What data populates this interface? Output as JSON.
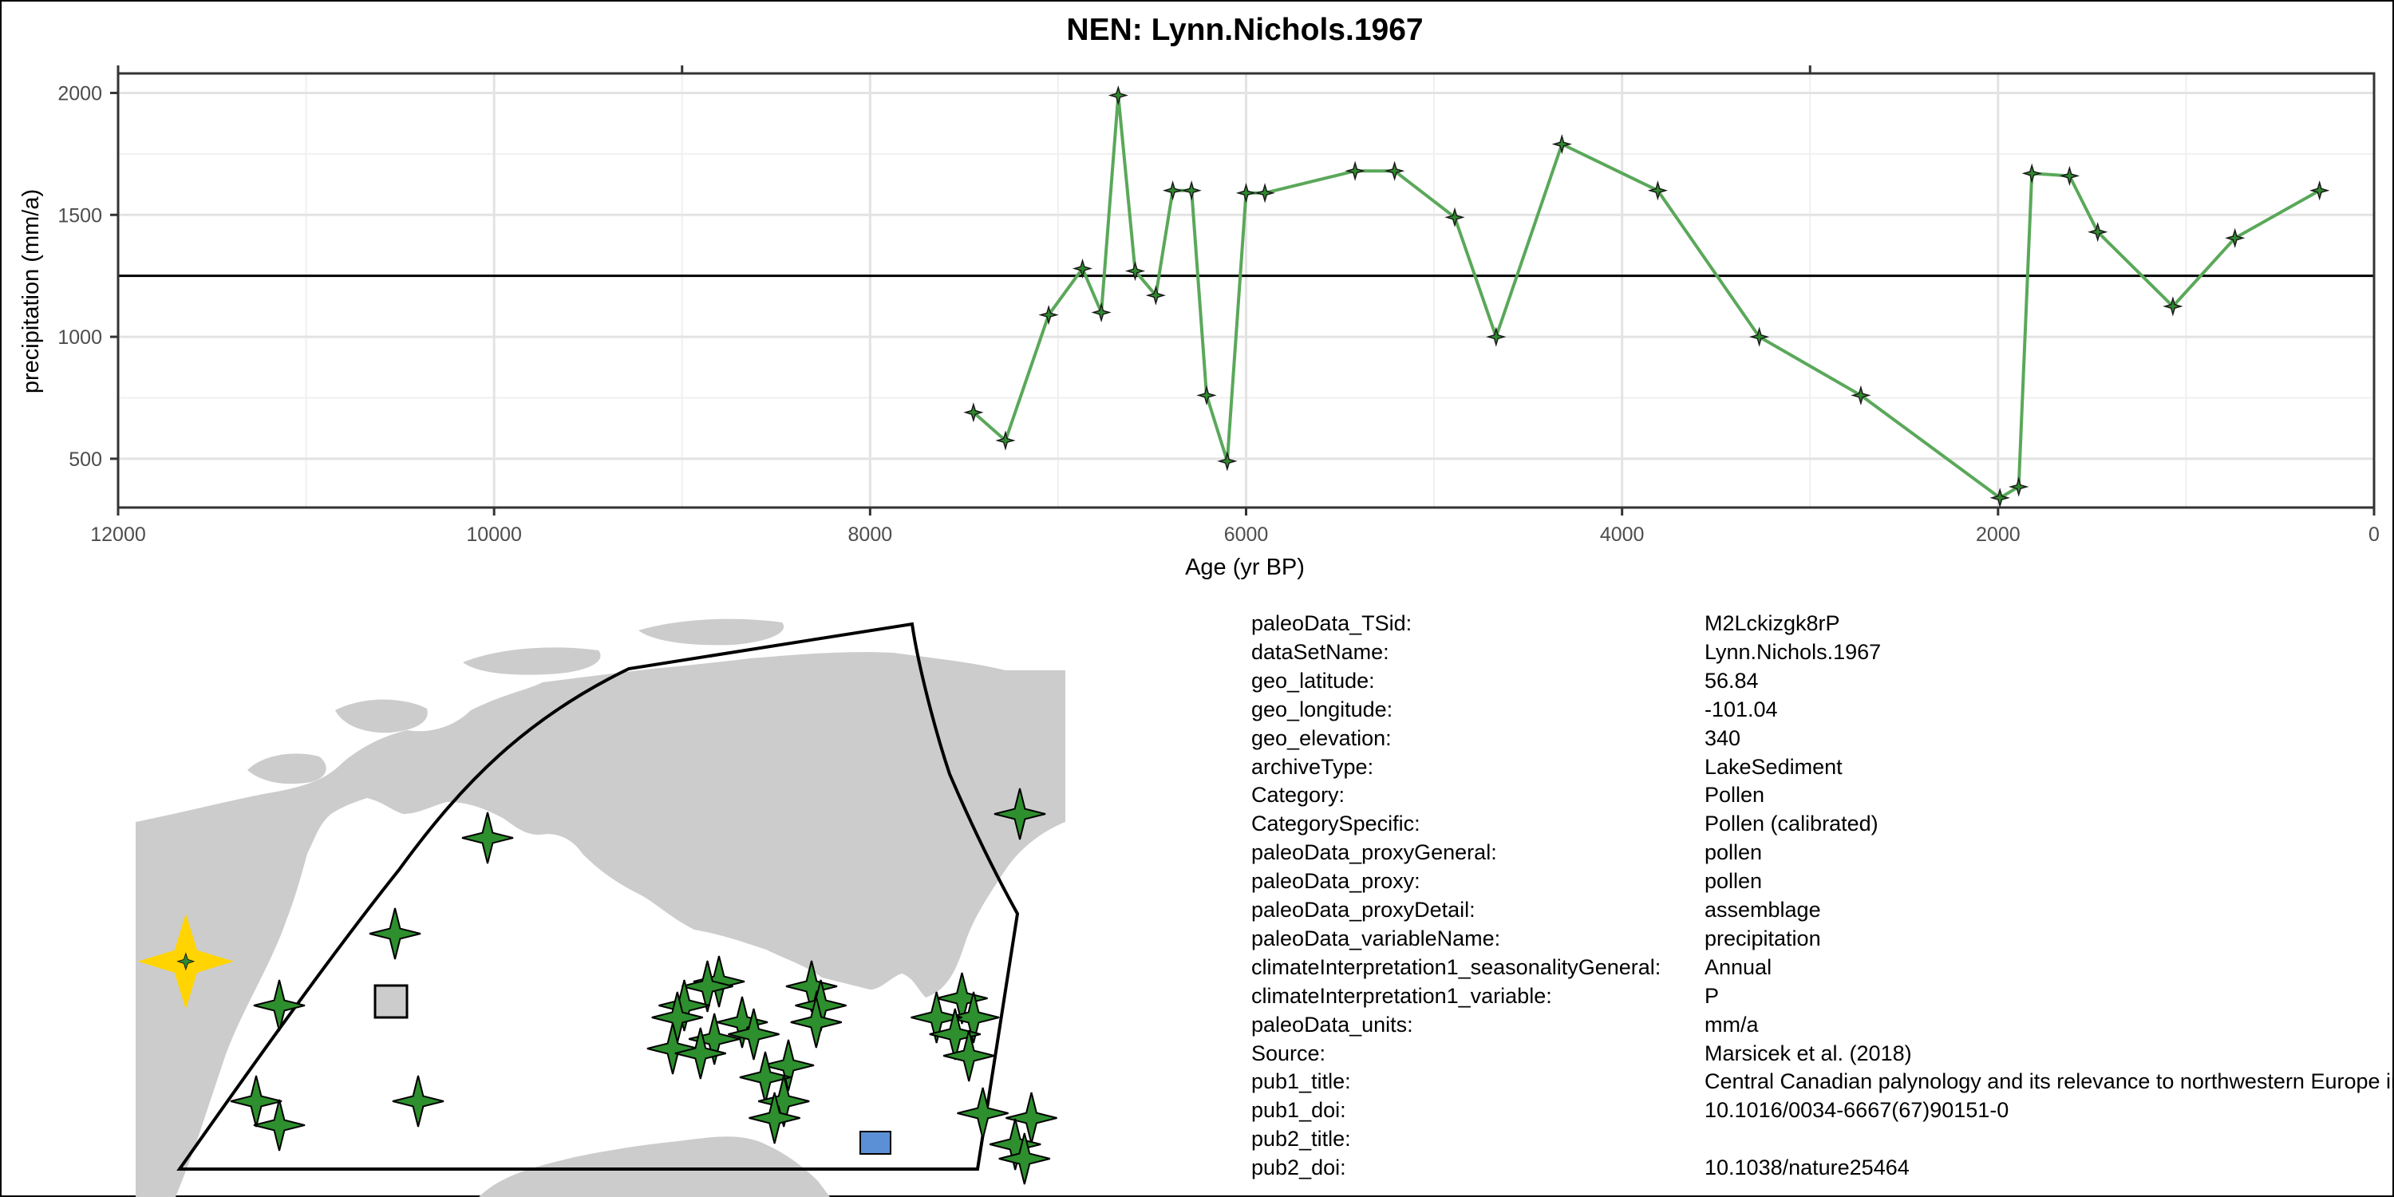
{
  "chart_data": {
    "type": "line",
    "title": "NEN: Lynn.Nichols.1967",
    "xlabel": "Age (yr BP)",
    "ylabel": "precipitation (mm/a)",
    "xlim": [
      12000,
      0
    ],
    "ylim": [
      300,
      2080
    ],
    "x_reversed": true,
    "x_ticks": [
      12000,
      10000,
      8000,
      6000,
      4000,
      2000,
      0
    ],
    "x_tick_labels": [
      "12000",
      "10000",
      "8000",
      "6000",
      "4000",
      "2000",
      "0"
    ],
    "y_ticks": [
      500,
      1000,
      1500,
      2000
    ],
    "y_tick_labels": [
      "500",
      "1000",
      "1500",
      "2000"
    ],
    "grid": true,
    "reference_line": 1250,
    "series": [
      {
        "color": "#5aa85a",
        "marker": "four-point-star",
        "x": [
          7450,
          7280,
          7050,
          6870,
          6770,
          6680,
          6590,
          6480,
          6390,
          6290,
          6210,
          6100,
          6000,
          5900,
          5420,
          5210,
          4890,
          4670,
          4320,
          3810,
          3270,
          2730,
          1990,
          1890,
          1820,
          1620,
          1470,
          1070,
          740,
          290
        ],
        "y": [
          690,
          575,
          1090,
          1280,
          1100,
          1990,
          1270,
          1170,
          1600,
          1600,
          760,
          490,
          1590,
          1590,
          1680,
          1680,
          1490,
          1000,
          1790,
          1600,
          1000,
          760,
          340,
          385,
          1670,
          1660,
          1430,
          1125,
          1405,
          1600
        ]
      }
    ]
  },
  "map": {
    "sites": [
      {
        "lon": -70,
        "lat": 72.6,
        "highlight": false
      },
      {
        "lon": -65,
        "lat": 63,
        "highlight": false
      },
      {
        "lon": -88,
        "lat": 62,
        "highlight": false
      },
      {
        "lon": -92,
        "lat": 58,
        "highlight": false
      },
      {
        "lon": -97,
        "lat": 55,
        "highlight": false
      },
      {
        "lon": -98,
        "lat": 51,
        "highlight": false
      },
      {
        "lon": -97,
        "lat": 50,
        "highlight": false
      },
      {
        "lon": -91,
        "lat": 51,
        "highlight": false
      },
      {
        "lon": -78,
        "lat": 56,
        "highlight": false
      },
      {
        "lon": -78.5,
        "lat": 55.8,
        "highlight": false
      },
      {
        "lon": -79.5,
        "lat": 55,
        "highlight": false
      },
      {
        "lon": -77,
        "lat": 54.3,
        "highlight": false
      },
      {
        "lon": -79.8,
        "lat": 54.5,
        "highlight": false
      },
      {
        "lon": -78.2,
        "lat": 53.6,
        "highlight": false
      },
      {
        "lon": -80,
        "lat": 53.2,
        "highlight": false
      },
      {
        "lon": -78.8,
        "lat": 53,
        "highlight": false
      },
      {
        "lon": -74,
        "lat": 55.8,
        "highlight": false
      },
      {
        "lon": -73.6,
        "lat": 55,
        "highlight": false
      },
      {
        "lon": -73.8,
        "lat": 54.3,
        "highlight": false
      },
      {
        "lon": -76.5,
        "lat": 53.8,
        "highlight": false
      },
      {
        "lon": -75,
        "lat": 52.5,
        "highlight": false
      },
      {
        "lon": -67.5,
        "lat": 55.3,
        "highlight": false
      },
      {
        "lon": -67,
        "lat": 54.5,
        "highlight": false
      },
      {
        "lon": -68.6,
        "lat": 54.5,
        "highlight": false
      },
      {
        "lon": -67.8,
        "lat": 53.8,
        "highlight": false
      },
      {
        "lon": -67.2,
        "lat": 52.9,
        "highlight": false
      },
      {
        "lon": -76,
        "lat": 52,
        "highlight": false
      },
      {
        "lon": -75.2,
        "lat": 51,
        "highlight": false
      },
      {
        "lon": -75.6,
        "lat": 50.3,
        "highlight": false
      },
      {
        "lon": -66.6,
        "lat": 50.5,
        "highlight": false
      },
      {
        "lon": -64.5,
        "lat": 50.3,
        "highlight": false
      },
      {
        "lon": -65.2,
        "lat": 49.2,
        "highlight": false
      },
      {
        "lon": -64.8,
        "lat": 48.6,
        "highlight": false
      },
      {
        "lon": -101.04,
        "lat": 56.84,
        "highlight": true
      }
    ]
  },
  "metadata": [
    {
      "key": "paleoData_TSid:",
      "value": "M2Lckizgk8rP"
    },
    {
      "key": "dataSetName:",
      "value": "Lynn.Nichols.1967"
    },
    {
      "key": "geo_latitude:",
      "value": "56.84"
    },
    {
      "key": "geo_longitude:",
      "value": "-101.04"
    },
    {
      "key": "geo_elevation:",
      "value": "340"
    },
    {
      "key": "archiveType:",
      "value": "LakeSediment"
    },
    {
      "key": "Category:",
      "value": "Pollen"
    },
    {
      "key": "CategorySpecific:",
      "value": "Pollen (calibrated)"
    },
    {
      "key": "paleoData_proxyGeneral:",
      "value": "pollen"
    },
    {
      "key": "paleoData_proxy:",
      "value": "pollen"
    },
    {
      "key": "paleoData_proxyDetail:",
      "value": "assemblage"
    },
    {
      "key": "paleoData_variableName:",
      "value": "precipitation"
    },
    {
      "key": "climateInterpretation1_seasonalityGeneral:",
      "value": "Annual"
    },
    {
      "key": "climateInterpretation1_variable:",
      "value": "P"
    },
    {
      "key": "paleoData_units:",
      "value": "mm/a"
    },
    {
      "key": "Source:",
      "value": "Marsicek et al. (2018)"
    },
    {
      "key": "pub1_title:",
      "value": "Central Canadian palynology and its relevance to northwestern Europe in the late Quaternary period"
    },
    {
      "key": "pub1_doi:",
      "value": "10.1016/0034-6667(67)90151-0"
    },
    {
      "key": "pub2_title:",
      "value": ""
    },
    {
      "key": "pub2_doi:",
      "value": "10.1038/nature25464"
    }
  ]
}
